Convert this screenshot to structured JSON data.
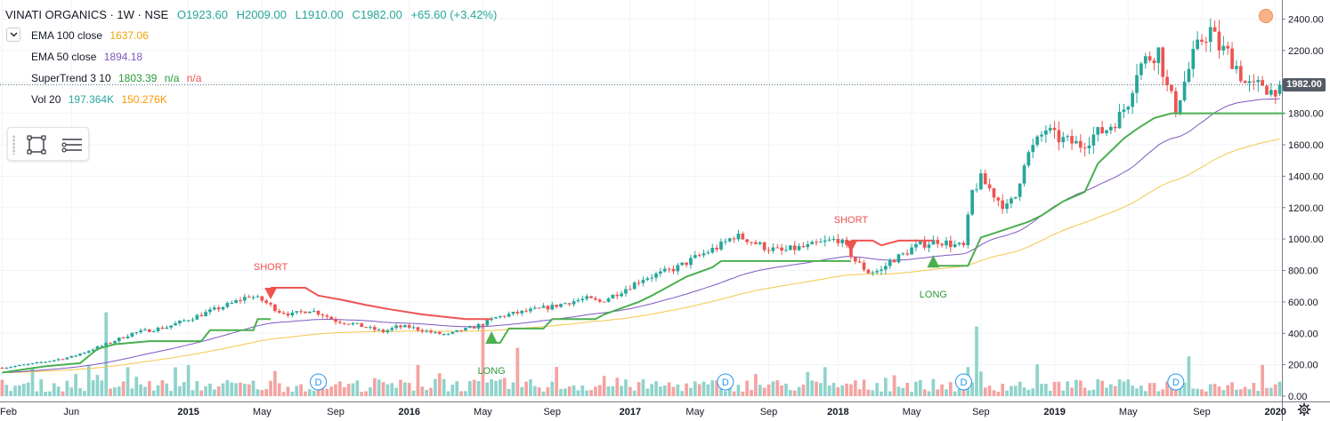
{
  "header": {
    "symbol": "VINATI ORGANICS · 1W · NSE",
    "open": "O1923.60",
    "high": "H2009.00",
    "low": "L1910.00",
    "close": "C1982.00",
    "change": "+65.60 (+3.42%)"
  },
  "indicators": [
    {
      "label": "EMA 100 close",
      "value": "1637.06",
      "color": "#f5c64a"
    },
    {
      "label": "EMA 50 close",
      "value": "1894.18",
      "color": "#7e57c2"
    },
    {
      "label": "SuperTrend 3 10",
      "value": "1803.39",
      "value2": "n/a",
      "value3": "n/a",
      "color": "#2a9b3a",
      "color2": "#ef5350"
    },
    {
      "label": "Vol 20",
      "value": "197.364K",
      "value2": "150.276K",
      "color": "#26a69a",
      "color2": "#ff9800"
    }
  ],
  "price_tag": "1982.00",
  "colors": {
    "up": "#26a69a",
    "down": "#ef5350",
    "st_up": "#4caf50",
    "st_down": "#ef5350",
    "ema100": "#f5c64a",
    "ema50": "#7e57c2",
    "vol_up": "#8fd3cb",
    "vol_down": "#f4a3a2",
    "grid": "#f0f3fa",
    "axis_text": "#131722"
  },
  "icons": {
    "collapse": "chevron-down-icon",
    "rect": "rectangle-tool-icon",
    "menu": "object-tree-icon",
    "alert": "alert-icon",
    "settings": "gear-icon",
    "dividend": "dividend-marker"
  },
  "chart_data": {
    "type": "candlestick",
    "y_ticks": [
      "0.00",
      "200.00",
      "400.00",
      "600.00",
      "800.00",
      "1000.00",
      "1200.00",
      "1400.00",
      "1600.00",
      "1800.00",
      "2000.00",
      "2200.00",
      "2400.00"
    ],
    "ylim": [
      0,
      2480
    ],
    "x_tick_labels": [
      "Feb",
      "Jun",
      "2015",
      "May",
      "Sep",
      "2016",
      "May",
      "Sep",
      "2017",
      "May",
      "Sep",
      "2018",
      "May",
      "Sep",
      "2019",
      "May",
      "Sep",
      "2020"
    ],
    "x_tick_index": [
      0,
      16,
      43,
      60,
      77,
      94,
      111,
      127,
      145,
      160,
      177,
      193,
      210,
      226,
      243,
      260,
      277,
      294
    ],
    "n_weeks": 296,
    "price_anchors": [
      [
        0,
        180
      ],
      [
        8,
        210
      ],
      [
        16,
        250
      ],
      [
        24,
        330
      ],
      [
        30,
        400
      ],
      [
        38,
        440
      ],
      [
        43,
        490
      ],
      [
        48,
        540
      ],
      [
        53,
        590
      ],
      [
        57,
        640
      ],
      [
        60,
        610
      ],
      [
        64,
        540
      ],
      [
        67,
        520
      ],
      [
        71,
        550
      ],
      [
        74,
        520
      ],
      [
        77,
        480
      ],
      [
        81,
        460
      ],
      [
        85,
        430
      ],
      [
        88,
        410
      ],
      [
        91,
        440
      ],
      [
        94,
        440
      ],
      [
        97,
        420
      ],
      [
        100,
        400
      ],
      [
        103,
        390
      ],
      [
        106,
        420
      ],
      [
        108,
        430
      ],
      [
        111,
        460
      ],
      [
        114,
        500
      ],
      [
        117,
        520
      ],
      [
        121,
        540
      ],
      [
        125,
        560
      ],
      [
        127,
        570
      ],
      [
        131,
        600
      ],
      [
        135,
        620
      ],
      [
        138,
        600
      ],
      [
        141,
        640
      ],
      [
        145,
        700
      ],
      [
        148,
        750
      ],
      [
        152,
        780
      ],
      [
        156,
        820
      ],
      [
        160,
        880
      ],
      [
        163,
        920
      ],
      [
        166,
        960
      ],
      [
        169,
        1020
      ],
      [
        172,
        1000
      ],
      [
        175,
        960
      ],
      [
        177,
        940
      ],
      [
        180,
        920
      ],
      [
        183,
        940
      ],
      [
        186,
        950
      ],
      [
        190,
        980
      ],
      [
        193,
        1000
      ],
      [
        195,
        940
      ],
      [
        197,
        860
      ],
      [
        200,
        790
      ],
      [
        203,
        800
      ],
      [
        205,
        860
      ],
      [
        208,
        900
      ],
      [
        210,
        940
      ],
      [
        213,
        970
      ],
      [
        216,
        990
      ],
      [
        220,
        960
      ],
      [
        222,
        950
      ],
      [
        224,
        1300
      ],
      [
        226,
        1380
      ],
      [
        228,
        1320
      ],
      [
        230,
        1250
      ],
      [
        232,
        1200
      ],
      [
        234,
        1270
      ],
      [
        236,
        1500
      ],
      [
        239,
        1620
      ],
      [
        241,
        1700
      ],
      [
        243,
        1650
      ],
      [
        246,
        1620
      ],
      [
        249,
        1600
      ],
      [
        252,
        1660
      ],
      [
        255,
        1700
      ],
      [
        258,
        1780
      ],
      [
        260,
        1880
      ],
      [
        262,
        2080
      ],
      [
        264,
        2140
      ],
      [
        267,
        2200
      ],
      [
        269,
        1960
      ],
      [
        271,
        1830
      ],
      [
        273,
        2000
      ],
      [
        275,
        2160
      ],
      [
        277,
        2270
      ],
      [
        279,
        2330
      ],
      [
        281,
        2220
      ],
      [
        283,
        2180
      ],
      [
        285,
        2100
      ],
      [
        287,
        1990
      ],
      [
        289,
        1960
      ],
      [
        291,
        1990
      ],
      [
        293,
        1940
      ],
      [
        295,
        1982
      ]
    ],
    "supertrend_segments": [
      {
        "dir": "up",
        "points": [
          [
            0,
            150
          ],
          [
            5,
            170
          ],
          [
            10,
            190
          ],
          [
            18,
            210
          ],
          [
            22,
            300
          ],
          [
            26,
            330
          ],
          [
            34,
            350
          ],
          [
            46,
            350
          ],
          [
            48,
            420
          ],
          [
            58,
            420
          ],
          [
            59,
            490
          ],
          [
            62,
            490
          ]
        ]
      },
      {
        "dir": "down",
        "points": [
          [
            62,
            690
          ],
          [
            70,
            690
          ],
          [
            73,
            640
          ],
          [
            79,
            610
          ],
          [
            84,
            580
          ],
          [
            89,
            555
          ],
          [
            97,
            520
          ],
          [
            107,
            490
          ],
          [
            113,
            490
          ]
        ]
      },
      {
        "dir": "up",
        "points": [
          [
            113,
            340
          ],
          [
            115,
            340
          ],
          [
            117,
            430
          ],
          [
            125,
            430
          ],
          [
            127,
            490
          ],
          [
            137,
            490
          ],
          [
            139,
            520
          ],
          [
            143,
            560
          ],
          [
            147,
            600
          ],
          [
            150,
            640
          ],
          [
            154,
            700
          ],
          [
            158,
            760
          ],
          [
            164,
            820
          ],
          [
            166,
            860
          ],
          [
            196,
            860
          ]
        ]
      },
      {
        "dir": "down",
        "points": [
          [
            196,
            990
          ],
          [
            201,
            990
          ],
          [
            203,
            960
          ],
          [
            207,
            990
          ],
          [
            215,
            990
          ]
        ]
      },
      {
        "dir": "up",
        "points": [
          [
            215,
            830
          ],
          [
            223,
            830
          ],
          [
            226,
            1010
          ],
          [
            237,
            1110
          ],
          [
            240,
            1150
          ],
          [
            245,
            1240
          ],
          [
            250,
            1300
          ],
          [
            253,
            1480
          ],
          [
            256,
            1560
          ],
          [
            259,
            1640
          ],
          [
            262,
            1700
          ],
          [
            266,
            1770
          ],
          [
            270,
            1800
          ],
          [
            296,
            1800
          ]
        ]
      }
    ],
    "signals": [
      {
        "label": "SHORT",
        "type": "short",
        "week": 62,
        "price": 690
      },
      {
        "label": "LONG",
        "type": "long",
        "week": 113,
        "price": 345
      },
      {
        "label": "SHORT",
        "type": "short",
        "week": 196,
        "price": 990
      },
      {
        "label": "LONG",
        "type": "long",
        "week": 215,
        "price": 830
      }
    ],
    "ema100_end": 1637.06,
    "ema50_end": 1894.18,
    "volume_scale_max": 430,
    "volume_spikes": [
      [
        24,
        590
      ],
      [
        96,
        220
      ],
      [
        111,
        500
      ],
      [
        119,
        340
      ],
      [
        225,
        490
      ],
      [
        274,
        280
      ],
      [
        291,
        220
      ]
    ],
    "dividend_weeks": [
      73,
      167,
      222,
      271
    ],
    "dividend_label": "D",
    "last_price": 1982.0
  }
}
